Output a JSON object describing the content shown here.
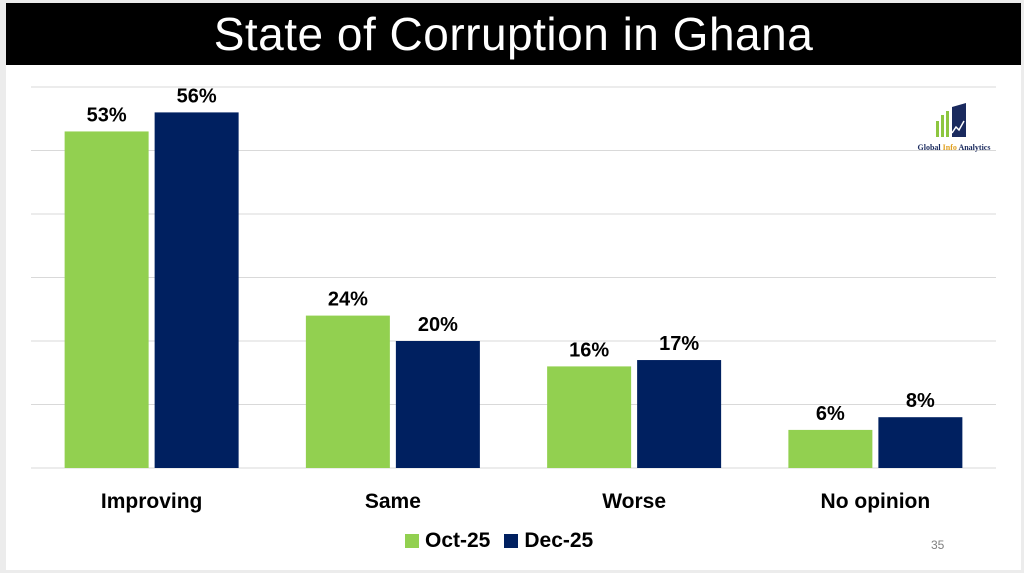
{
  "title": "State of Corruption in Ghana",
  "page_number": "35",
  "logo": {
    "text_part1": "Global ",
    "text_accent": "Info",
    "text_part2": " Analytics"
  },
  "colors": {
    "series1": "#92d050",
    "series2": "#002060",
    "grid": "#d9d9d9"
  },
  "chart_data": {
    "type": "bar",
    "title": "State of Corruption in Ghana",
    "categories": [
      "Improving",
      "Same",
      "Worse",
      "No opinion"
    ],
    "series": [
      {
        "name": "Oct-25",
        "values": [
          53,
          24,
          16,
          6
        ],
        "labels": [
          "53%",
          "24%",
          "16%",
          "6%"
        ]
      },
      {
        "name": "Dec-25",
        "values": [
          56,
          20,
          17,
          8
        ],
        "labels": [
          "56%",
          "20%",
          "17%",
          "8%"
        ]
      }
    ],
    "ylim": [
      0,
      60
    ],
    "grid": true,
    "legend": "bottom"
  }
}
